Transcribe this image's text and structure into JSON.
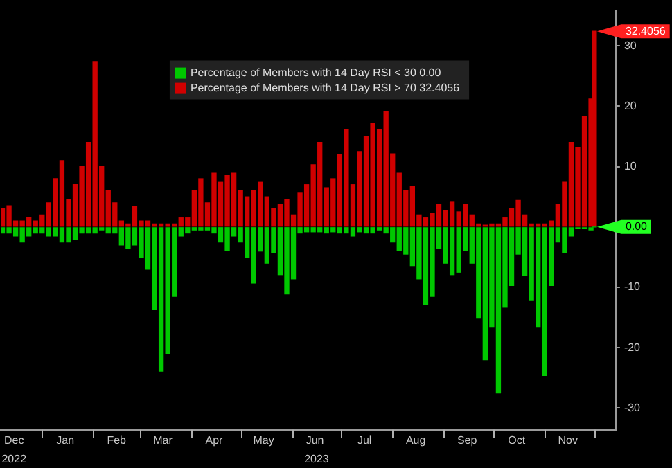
{
  "chart_data": {
    "type": "bar",
    "legend": "top",
    "stacked": true,
    "x": [
      "2022-12-08",
      "2022-12-12",
      "2022-12-16",
      "2022-12-20",
      "2022-12-24",
      "2022-12-28",
      "2023-01-01",
      "2023-01-05",
      "2023-01-09",
      "2023-01-13",
      "2023-01-17",
      "2023-01-21",
      "2023-01-25",
      "2023-01-29",
      "2023-02-02",
      "2023-02-06",
      "2023-02-10",
      "2023-02-14",
      "2023-02-18",
      "2023-02-22",
      "2023-02-26",
      "2023-03-02",
      "2023-03-06",
      "2023-03-10",
      "2023-03-14",
      "2023-03-18",
      "2023-03-22",
      "2023-03-26",
      "2023-03-30",
      "2023-04-03",
      "2023-04-07",
      "2023-04-11",
      "2023-04-15",
      "2023-04-19",
      "2023-04-23",
      "2023-04-27",
      "2023-05-01",
      "2023-05-05",
      "2023-05-09",
      "2023-05-13",
      "2023-05-17",
      "2023-05-21",
      "2023-05-25",
      "2023-05-29",
      "2023-06-02",
      "2023-06-06",
      "2023-06-10",
      "2023-06-14",
      "2023-06-18",
      "2023-06-22",
      "2023-06-26",
      "2023-06-30",
      "2023-07-04",
      "2023-07-08",
      "2023-07-12",
      "2023-07-16",
      "2023-07-20",
      "2023-07-24",
      "2023-07-28",
      "2023-08-01",
      "2023-08-05",
      "2023-08-09",
      "2023-08-13",
      "2023-08-17",
      "2023-08-21",
      "2023-08-25",
      "2023-08-29",
      "2023-09-02",
      "2023-09-06",
      "2023-09-10",
      "2023-09-14",
      "2023-09-18",
      "2023-09-22",
      "2023-09-26",
      "2023-09-30",
      "2023-10-04",
      "2023-10-08",
      "2023-10-12",
      "2023-10-16",
      "2023-10-20",
      "2023-10-24",
      "2023-10-28",
      "2023-11-01",
      "2023-11-05",
      "2023-11-09",
      "2023-11-13",
      "2023-11-17",
      "2023-11-21",
      "2023-11-25",
      "2023-11-29",
      "2023-12-01"
    ],
    "series": [
      {
        "name": "Percentage of Members with 14 Day RSI < 30 0.00",
        "color": "#00c800",
        "values": [
          -1,
          -1,
          -1.5,
          -2.5,
          -1.5,
          -1,
          -1,
          -1.5,
          -1.5,
          -2.5,
          -2.5,
          -2,
          -1,
          -1,
          -1,
          -0.5,
          -1,
          -1,
          -3,
          -3.5,
          -3,
          -5,
          -7,
          -13.7,
          -23.9,
          -21,
          -11.5,
          -1.5,
          -1,
          -0.5,
          -0.5,
          -0.5,
          -1,
          -2.5,
          -3.9,
          -1.5,
          -2.5,
          -5,
          -9.3,
          -4,
          -6,
          -4.2,
          -7.9,
          -11.1,
          -8.6,
          -1,
          -0.8,
          -0.8,
          -0.8,
          -1,
          -0.8,
          -1,
          -1,
          -1.5,
          -0.8,
          -1,
          -1,
          -0.5,
          -1,
          -2.5,
          -3.9,
          -4.5,
          -6.4,
          -8.6,
          -12.9,
          -11.5,
          -3.5,
          -6,
          -7.9,
          -7.5,
          -3.9,
          -6,
          -15.1,
          -22,
          -16.6,
          -27.5,
          -13.3,
          -9.7,
          -4.5,
          -8,
          -12.2,
          -16.6,
          -24.6,
          -9.7,
          -2.5,
          -4.2,
          -1.5,
          -0.3,
          -0.3,
          -0.5,
          0
        ]
      },
      {
        "name": "Percentage of Members with 14 Day RSI > 70 32.4056",
        "color": "#d00000",
        "values": [
          3,
          3.5,
          1,
          1,
          1.5,
          1,
          2,
          4,
          8,
          11,
          4.5,
          7,
          10,
          14,
          27.4,
          10,
          6,
          4,
          1,
          0.5,
          3.4,
          1,
          1,
          0.5,
          0.5,
          0.5,
          0.5,
          1.5,
          1.5,
          6,
          8,
          4,
          8.9,
          7.4,
          8.5,
          8.9,
          6,
          5,
          6,
          7.4,
          5,
          3,
          3.8,
          4.5,
          2,
          5.6,
          7,
          10.3,
          14,
          6.5,
          8,
          12,
          16.1,
          7,
          12.5,
          15,
          17.2,
          16.1,
          19.1,
          12.1,
          8.9,
          6,
          6.7,
          2,
          1.5,
          2.3,
          3.8,
          2.7,
          4.1,
          2.5,
          3.8,
          2,
          0.5,
          0.3,
          0.5,
          0.5,
          1.5,
          3,
          4.4,
          2,
          0.5,
          0.5,
          0.5,
          1,
          3.8,
          7.4,
          14,
          13.2,
          18.3,
          21.2,
          32.4056
        ]
      }
    ],
    "xlim": [
      "2022-12-07",
      "2023-12-14"
    ],
    "xticks": [
      {
        "value": "2022-12-15",
        "label": "Dec"
      },
      {
        "value": "2023-01-01",
        "label": null
      },
      {
        "value": "2023-01-15",
        "label": "Jan"
      },
      {
        "value": "2023-02-01",
        "label": null
      },
      {
        "value": "2023-02-15",
        "label": "Feb"
      },
      {
        "value": "2023-03-01",
        "label": null
      },
      {
        "value": "2023-03-15",
        "label": "Mar"
      },
      {
        "value": "2023-04-01",
        "label": null
      },
      {
        "value": "2023-04-15",
        "label": "Apr"
      },
      {
        "value": "2023-05-01",
        "label": null
      },
      {
        "value": "2023-05-15",
        "label": "May"
      },
      {
        "value": "2023-06-01",
        "label": null
      },
      {
        "value": "2023-06-15",
        "label": "Jun"
      },
      {
        "value": "2023-07-01",
        "label": null
      },
      {
        "value": "2023-07-15",
        "label": "Jul"
      },
      {
        "value": "2023-08-01",
        "label": null
      },
      {
        "value": "2023-08-15",
        "label": "Aug"
      },
      {
        "value": "2023-09-01",
        "label": null
      },
      {
        "value": "2023-09-15",
        "label": "Sep"
      },
      {
        "value": "2023-10-01",
        "label": null
      },
      {
        "value": "2023-10-15",
        "label": "Oct"
      },
      {
        "value": "2023-11-01",
        "label": null
      },
      {
        "value": "2023-11-15",
        "label": "Nov"
      },
      {
        "value": "2023-12-01",
        "label": null
      }
    ],
    "ylim": [
      -33.6,
      35.8
    ],
    "yticks": [
      -30,
      -20,
      -10,
      {
        "value": 0,
        "label": null
      },
      10,
      20,
      30
    ],
    "annotations": [
      {
        "text": "32.4056",
        "x": "2023-12-01",
        "y": 32.4056
      },
      {
        "text": "0.00",
        "x": "2023-12-01",
        "y": 0
      },
      "2022",
      "2023"
    ]
  }
}
